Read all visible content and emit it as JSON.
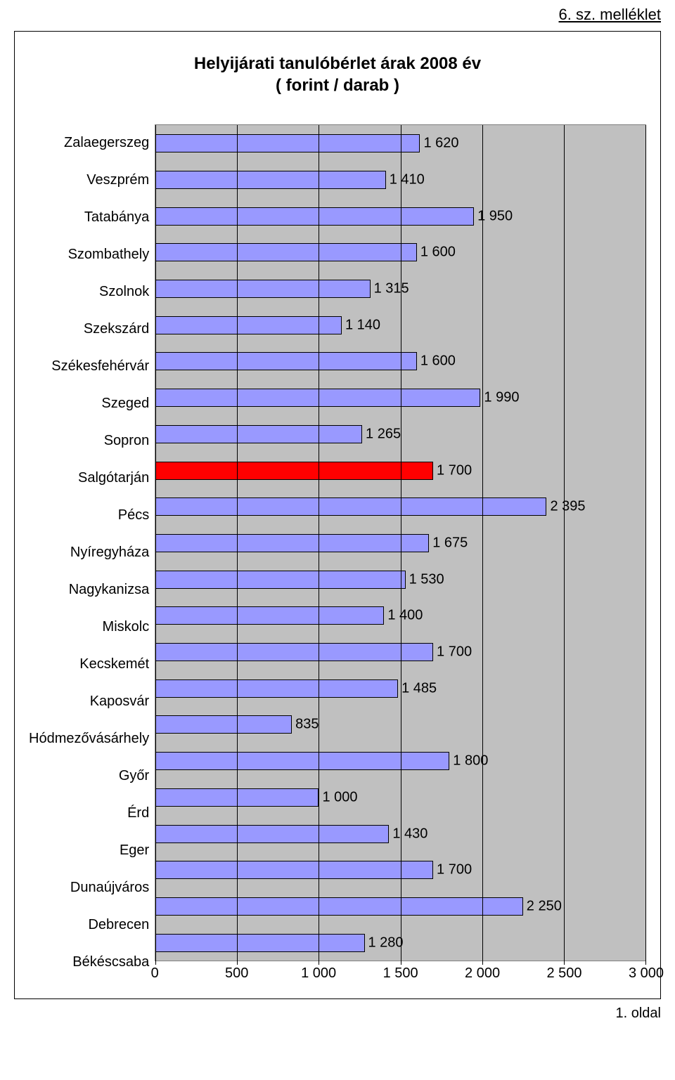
{
  "header_link": "6. sz. melléklet",
  "chart": {
    "type": "bar-horizontal",
    "title_line1": "Helyijárati tanulóbérlet árak 2008 év",
    "title_line2": "( forint / darab )",
    "bar_color_default": "#9999ff",
    "bar_color_highlight": "#ff0000",
    "plot_background": "#c0c0c0",
    "grid_color": "#000000",
    "xlim_min": 0,
    "xlim_max": 3000,
    "x_tick_step": 500,
    "x_ticks": [
      {
        "pos": 0,
        "label": "0"
      },
      {
        "pos": 500,
        "label": "500"
      },
      {
        "pos": 1000,
        "label": "1 000"
      },
      {
        "pos": 1500,
        "label": "1 500"
      },
      {
        "pos": 2000,
        "label": "2 000"
      },
      {
        "pos": 2500,
        "label": "2 500"
      },
      {
        "pos": 3000,
        "label": "3 000"
      }
    ],
    "rows": [
      {
        "label": "Zalaegerszeg",
        "value": 1620,
        "value_label": "1 620",
        "highlight": false
      },
      {
        "label": "Veszprém",
        "value": 1410,
        "value_label": "1 410",
        "highlight": false
      },
      {
        "label": "Tatabánya",
        "value": 1950,
        "value_label": "1 950",
        "highlight": false
      },
      {
        "label": "Szombathely",
        "value": 1600,
        "value_label": "1 600",
        "highlight": false
      },
      {
        "label": "Szolnok",
        "value": 1315,
        "value_label": "1 315",
        "highlight": false
      },
      {
        "label": "Szekszárd",
        "value": 1140,
        "value_label": "1 140",
        "highlight": false
      },
      {
        "label": "Székesfehérvár",
        "value": 1600,
        "value_label": "1 600",
        "highlight": false
      },
      {
        "label": "Szeged",
        "value": 1990,
        "value_label": "1 990",
        "highlight": false
      },
      {
        "label": "Sopron",
        "value": 1265,
        "value_label": "1 265",
        "highlight": false
      },
      {
        "label": "Salgótarján",
        "value": 1700,
        "value_label": "1 700",
        "highlight": true
      },
      {
        "label": "Pécs",
        "value": 2395,
        "value_label": "2 395",
        "highlight": false
      },
      {
        "label": "Nyíregyháza",
        "value": 1675,
        "value_label": "1 675",
        "highlight": false
      },
      {
        "label": "Nagykanizsa",
        "value": 1530,
        "value_label": "1 530",
        "highlight": false
      },
      {
        "label": "Miskolc",
        "value": 1400,
        "value_label": "1 400",
        "highlight": false
      },
      {
        "label": "Kecskemét",
        "value": 1700,
        "value_label": "1 700",
        "highlight": false
      },
      {
        "label": "Kaposvár",
        "value": 1485,
        "value_label": "1 485",
        "highlight": false
      },
      {
        "label": "Hódmezővásárhely",
        "value": 835,
        "value_label": "835",
        "highlight": false
      },
      {
        "label": "Győr",
        "value": 1800,
        "value_label": "1 800",
        "highlight": false
      },
      {
        "label": "Érd",
        "value": 1000,
        "value_label": "1 000",
        "highlight": false
      },
      {
        "label": "Eger",
        "value": 1430,
        "value_label": "1 430",
        "highlight": false
      },
      {
        "label": "Dunaújváros",
        "value": 1700,
        "value_label": "1 700",
        "highlight": false
      },
      {
        "label": "Debrecen",
        "value": 2250,
        "value_label": "2 250",
        "highlight": false
      },
      {
        "label": "Békéscsaba",
        "value": 1280,
        "value_label": "1 280",
        "highlight": false
      }
    ]
  },
  "footer": "1. oldal"
}
